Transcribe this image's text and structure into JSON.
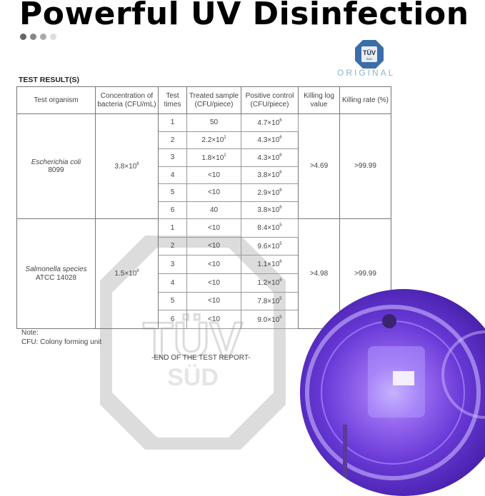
{
  "title": "Powerful UV Disinfection",
  "dots": [
    "#666666",
    "#888888",
    "#aaaaaa",
    "#dddddd"
  ],
  "logo": {
    "text": "TÜV",
    "sub": "SÜD",
    "caption": "ORIGINAL"
  },
  "section": "TEST RESULT(S)",
  "headers": [
    "Test organism",
    "Concentration of bacteria (CFU/mL)",
    "Test times",
    "Treated sample (CFU/piece)",
    "Positive control (CFU/piece)",
    "Killing log value",
    "Killing rate (%)"
  ],
  "groups": [
    {
      "organism": "Escherichia coli",
      "strain": "8099",
      "concentration": "3.8×10^8",
      "log": ">4.69",
      "rate": ">99.99",
      "rows": [
        [
          "1",
          "50",
          "4.7×10^6"
        ],
        [
          "2",
          "2.2×10^2",
          "4.3×10^6"
        ],
        [
          "3",
          "1.8×10^2",
          "4.3×10^6"
        ],
        [
          "4",
          "<10",
          "3.8×10^6"
        ],
        [
          "5",
          "<10",
          "2.9×10^6"
        ],
        [
          "6",
          "40",
          "3.8×10^6"
        ]
      ]
    },
    {
      "organism": "Salmonella species",
      "strain": "ATCC 14028",
      "concentration": "1.5×10^8",
      "log": ">4.98",
      "rate": ">99.99",
      "rows": [
        [
          "1",
          "<10",
          "8.4×10^5"
        ],
        [
          "2",
          "<10",
          "9.6×10^5"
        ],
        [
          "3",
          "<10",
          "1.1×10^6"
        ],
        [
          "4",
          "<10",
          "1.2×10^6"
        ],
        [
          "5",
          "<10",
          "7.8×10^5"
        ],
        [
          "6",
          "<10",
          "9.0×10^5"
        ]
      ]
    }
  ],
  "note": {
    "label": "Note:",
    "text": "CFU: Colony forming unit"
  },
  "end": "-END OF THE TEST REPORT-",
  "watermark": {
    "top": "TÜV",
    "bottom": "SÜD"
  }
}
